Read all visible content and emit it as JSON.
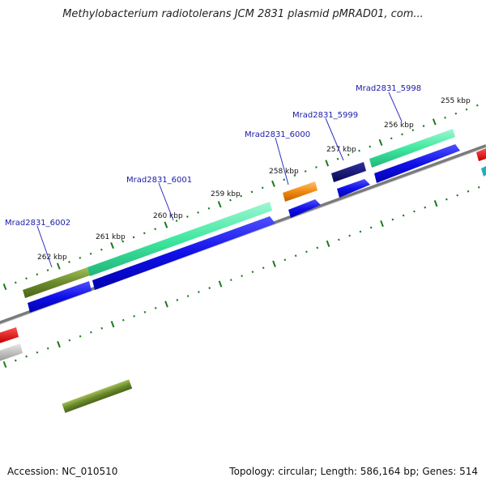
{
  "title": "Methylobacterium radiotolerans JCM 2831 plasmid pMRAD01, com...",
  "footer": {
    "accession": "Accession: NC_010510",
    "summary": "Topology: circular; Length: 586,164 bp; Genes: 514"
  },
  "kbp_labels": [
    "255 kbp",
    "256 kbp",
    "257 kbp",
    "258 kbp",
    "259 kbp",
    "260 kbp",
    "261 kbp",
    "262 kbp"
  ],
  "gene_labels": [
    "Mrad2831_5998",
    "Mrad2831_5999",
    "Mrad2831_6000",
    "Mrad2831_6001",
    "Mrad2831_6002"
  ],
  "colors": {
    "backbone": "#7a7a7a",
    "tick": "#1a7a1a",
    "cds_blue": "#1010e8",
    "gene_teal": "#40e8a0",
    "gene_olive": "#6b8a2a",
    "gene_orange": "#f08a10",
    "gene_navy": "#101070",
    "gene_red": "#e81010",
    "gene_grey": "#b8b8b8",
    "gene_cyan": "#20b0c0",
    "label_line": "#3030c0"
  }
}
